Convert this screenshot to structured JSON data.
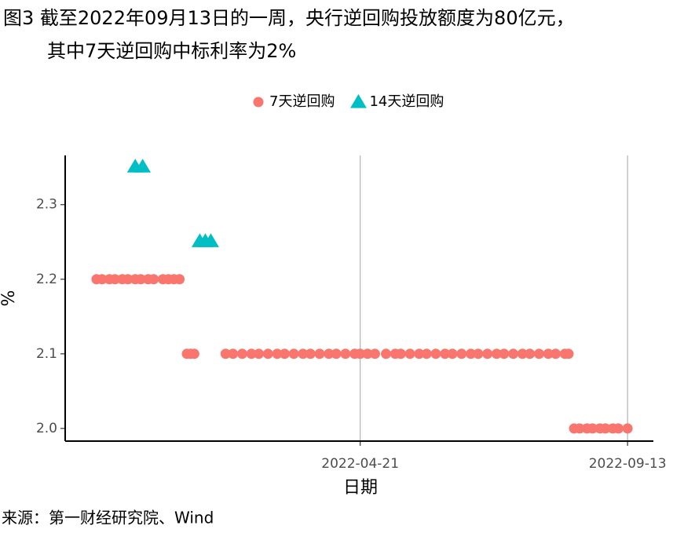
{
  "chart_data": {
    "type": "scatter",
    "title_lines": [
      "图3  截至2022年09月13日的一周，央行逆回购投放额度为80亿元，",
      "其中7天逆回购中标利率为2%"
    ],
    "x_label": "日期",
    "y_label": "%",
    "source": "来源：第一财经研究院、Wind",
    "xlim": [
      "2021-11-12",
      "2022-09-27"
    ],
    "xticks": [
      "2022-04-21",
      "2022-09-13"
    ],
    "ylim": [
      1.983,
      2.366
    ],
    "yticks": [
      2.0,
      {
        "value": 2.1,
        "label": "2.1"
      },
      {
        "value": 2.2,
        "label": "2.2"
      },
      {
        "value": 2.3,
        "label": "2.3"
      }
    ],
    "grid": "x",
    "legend": "top",
    "series": [
      {
        "name": "7天逆回购",
        "color": "#F8766D",
        "marker": "circle",
        "x": [
          "2021-11-29",
          "2021-12-02",
          "2021-12-06",
          "2021-12-09",
          "2021-12-13",
          "2021-12-16",
          "2021-12-20",
          "2021-12-23",
          "2021-12-27",
          "2021-12-30",
          "2022-01-04",
          "2022-01-07",
          "2022-01-10",
          "2022-01-13",
          "2022-01-17",
          "2022-01-19",
          "2022-01-21",
          "2022-02-07",
          "2022-02-11",
          "2022-02-16",
          "2022-02-21",
          "2022-02-25",
          "2022-03-02",
          "2022-03-07",
          "2022-03-11",
          "2022-03-16",
          "2022-03-21",
          "2022-03-25",
          "2022-03-30",
          "2022-04-04",
          "2022-04-08",
          "2022-04-13",
          "2022-04-18",
          "2022-04-21",
          "2022-04-25",
          "2022-04-29",
          "2022-05-05",
          "2022-05-10",
          "2022-05-13",
          "2022-05-18",
          "2022-05-23",
          "2022-05-27",
          "2022-06-01",
          "2022-06-06",
          "2022-06-10",
          "2022-06-15",
          "2022-06-20",
          "2022-06-24",
          "2022-06-29",
          "2022-07-04",
          "2022-07-08",
          "2022-07-13",
          "2022-07-18",
          "2022-07-22",
          "2022-07-27",
          "2022-08-01",
          "2022-08-05",
          "2022-08-10",
          "2022-08-12",
          "2022-08-15",
          "2022-08-18",
          "2022-08-22",
          "2022-08-25",
          "2022-08-29",
          "2022-09-01",
          "2022-09-05",
          "2022-09-08",
          "2022-09-13"
        ],
        "values": [
          2.2,
          2.2,
          2.2,
          2.2,
          2.2,
          2.2,
          2.2,
          2.2,
          2.2,
          2.2,
          2.2,
          2.2,
          2.2,
          2.2,
          2.1,
          2.1,
          2.1,
          2.1,
          2.1,
          2.1,
          2.1,
          2.1,
          2.1,
          2.1,
          2.1,
          2.1,
          2.1,
          2.1,
          2.1,
          2.1,
          2.1,
          2.1,
          2.1,
          2.1,
          2.1,
          2.1,
          2.1,
          2.1,
          2.1,
          2.1,
          2.1,
          2.1,
          2.1,
          2.1,
          2.1,
          2.1,
          2.1,
          2.1,
          2.1,
          2.1,
          2.1,
          2.1,
          2.1,
          2.1,
          2.1,
          2.1,
          2.1,
          2.1,
          2.1,
          2.0,
          2.0,
          2.0,
          2.0,
          2.0,
          2.0,
          2.0,
          2.0,
          2.0
        ]
      },
      {
        "name": "14天逆回购",
        "color": "#00BFC4",
        "marker": "triangle",
        "x": [
          "2021-12-20",
          "2021-12-24",
          "2022-01-24",
          "2022-01-27",
          "2022-01-30"
        ],
        "values": [
          2.35,
          2.35,
          2.25,
          2.25,
          2.25
        ]
      }
    ]
  }
}
